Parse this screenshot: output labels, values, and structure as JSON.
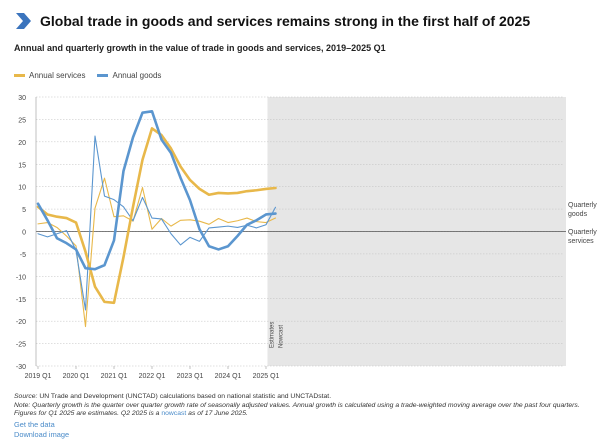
{
  "header": {
    "title": "Global trade in goods and services remains strong in the first half of 2025",
    "subtitle": "Annual and quarterly growth in the value of trade in goods and services, 2019–2025 Q1"
  },
  "colors": {
    "accent": "#3b74bd",
    "services": "#e8b84a",
    "goods": "#5b96cf",
    "estimates_band": "#e6e6e6"
  },
  "chart_data": {
    "type": "line",
    "ylim": [
      -30,
      30
    ],
    "y_ticks": [
      "30",
      "25",
      "20",
      "15",
      "10",
      "5",
      "0",
      "-5",
      "-10",
      "-15",
      "-20",
      "-25",
      "-30"
    ],
    "x_tick_labels": [
      "2019 Q1",
      "2020 Q1",
      "2021 Q1",
      "2022 Q1",
      "2023 Q1",
      "2024 Q1",
      "2025 Q1"
    ],
    "x_tick_index": [
      0,
      4,
      8,
      12,
      16,
      20,
      24
    ],
    "grid": true,
    "legend_placement": "top-left",
    "estimates_from_index": 24,
    "band_labels": [
      "Estimates",
      "Nowcast"
    ],
    "series": [
      {
        "name": "Annual services",
        "style": "thick",
        "color": "#e8b84a",
        "values": [
          5.5,
          3.8,
          3.3,
          3.0,
          2.0,
          -4.5,
          -12.3,
          -15.7,
          -15.9,
          -5.7,
          5.5,
          16.0,
          23.0,
          21.5,
          18.5,
          14.5,
          11.5,
          9.5,
          8.2,
          8.6,
          8.5,
          8.6,
          9.0,
          9.2,
          9.5,
          9.7
        ]
      },
      {
        "name": "Annual goods",
        "style": "thick",
        "color": "#5b96cf",
        "values": [
          6.2,
          2.5,
          -1.5,
          -2.6,
          -4.0,
          -8.2,
          -8.4,
          -7.5,
          -2.0,
          13.5,
          21.0,
          26.5,
          26.8,
          20.5,
          17.5,
          12.0,
          7.0,
          0.5,
          -3.3,
          -4.0,
          -3.3,
          -1.0,
          1.5,
          2.5,
          3.8,
          4.0
        ]
      },
      {
        "name": "Quarterly services",
        "style": "thin",
        "color": "#e8b84a",
        "values": [
          1.7,
          2.0,
          0.9,
          -1.0,
          -3.2,
          -21.2,
          5.2,
          11.9,
          3.3,
          3.5,
          2.3,
          9.8,
          0.5,
          2.9,
          1.2,
          2.5,
          2.6,
          2.3,
          1.6,
          2.9,
          2.0,
          2.4,
          3.0,
          2.2,
          2.0,
          3.0
        ]
      },
      {
        "name": "Quarterly goods",
        "style": "thin",
        "color": "#5b96cf",
        "values": [
          -0.5,
          -1.2,
          -0.5,
          0.2,
          -4.2,
          -17.5,
          21.3,
          7.9,
          7.1,
          5.5,
          2.4,
          7.6,
          3.0,
          2.8,
          -0.5,
          -3.0,
          -1.3,
          -2.2,
          0.8,
          1.0,
          1.2,
          0.9,
          1.4,
          0.8,
          1.5,
          5.4
        ]
      }
    ],
    "end_labels": {
      "quarterly_goods": [
        "Quarterly",
        "goods"
      ],
      "quarterly_services": [
        "Quarterly",
        "services"
      ]
    }
  },
  "footer": {
    "source_label": "Source:",
    "source_text": " UN Trade and Development (UNCTAD) calculations based on national statistic and UNCTADstat.",
    "note_label": "Note:",
    "note_text": " Quarterly growth is the quarter over quarter growth rate of seasonally adjusted values. Annual growth is calculated using a trade-weighted moving average over the past four quarters. Figures for Q1 2025 are estimates. Q2 2025 is a ",
    "note_link": "nowcast",
    "note_end": " as of 17 June 2025.",
    "get_data": "Get the data",
    "download_image": "Download image"
  }
}
